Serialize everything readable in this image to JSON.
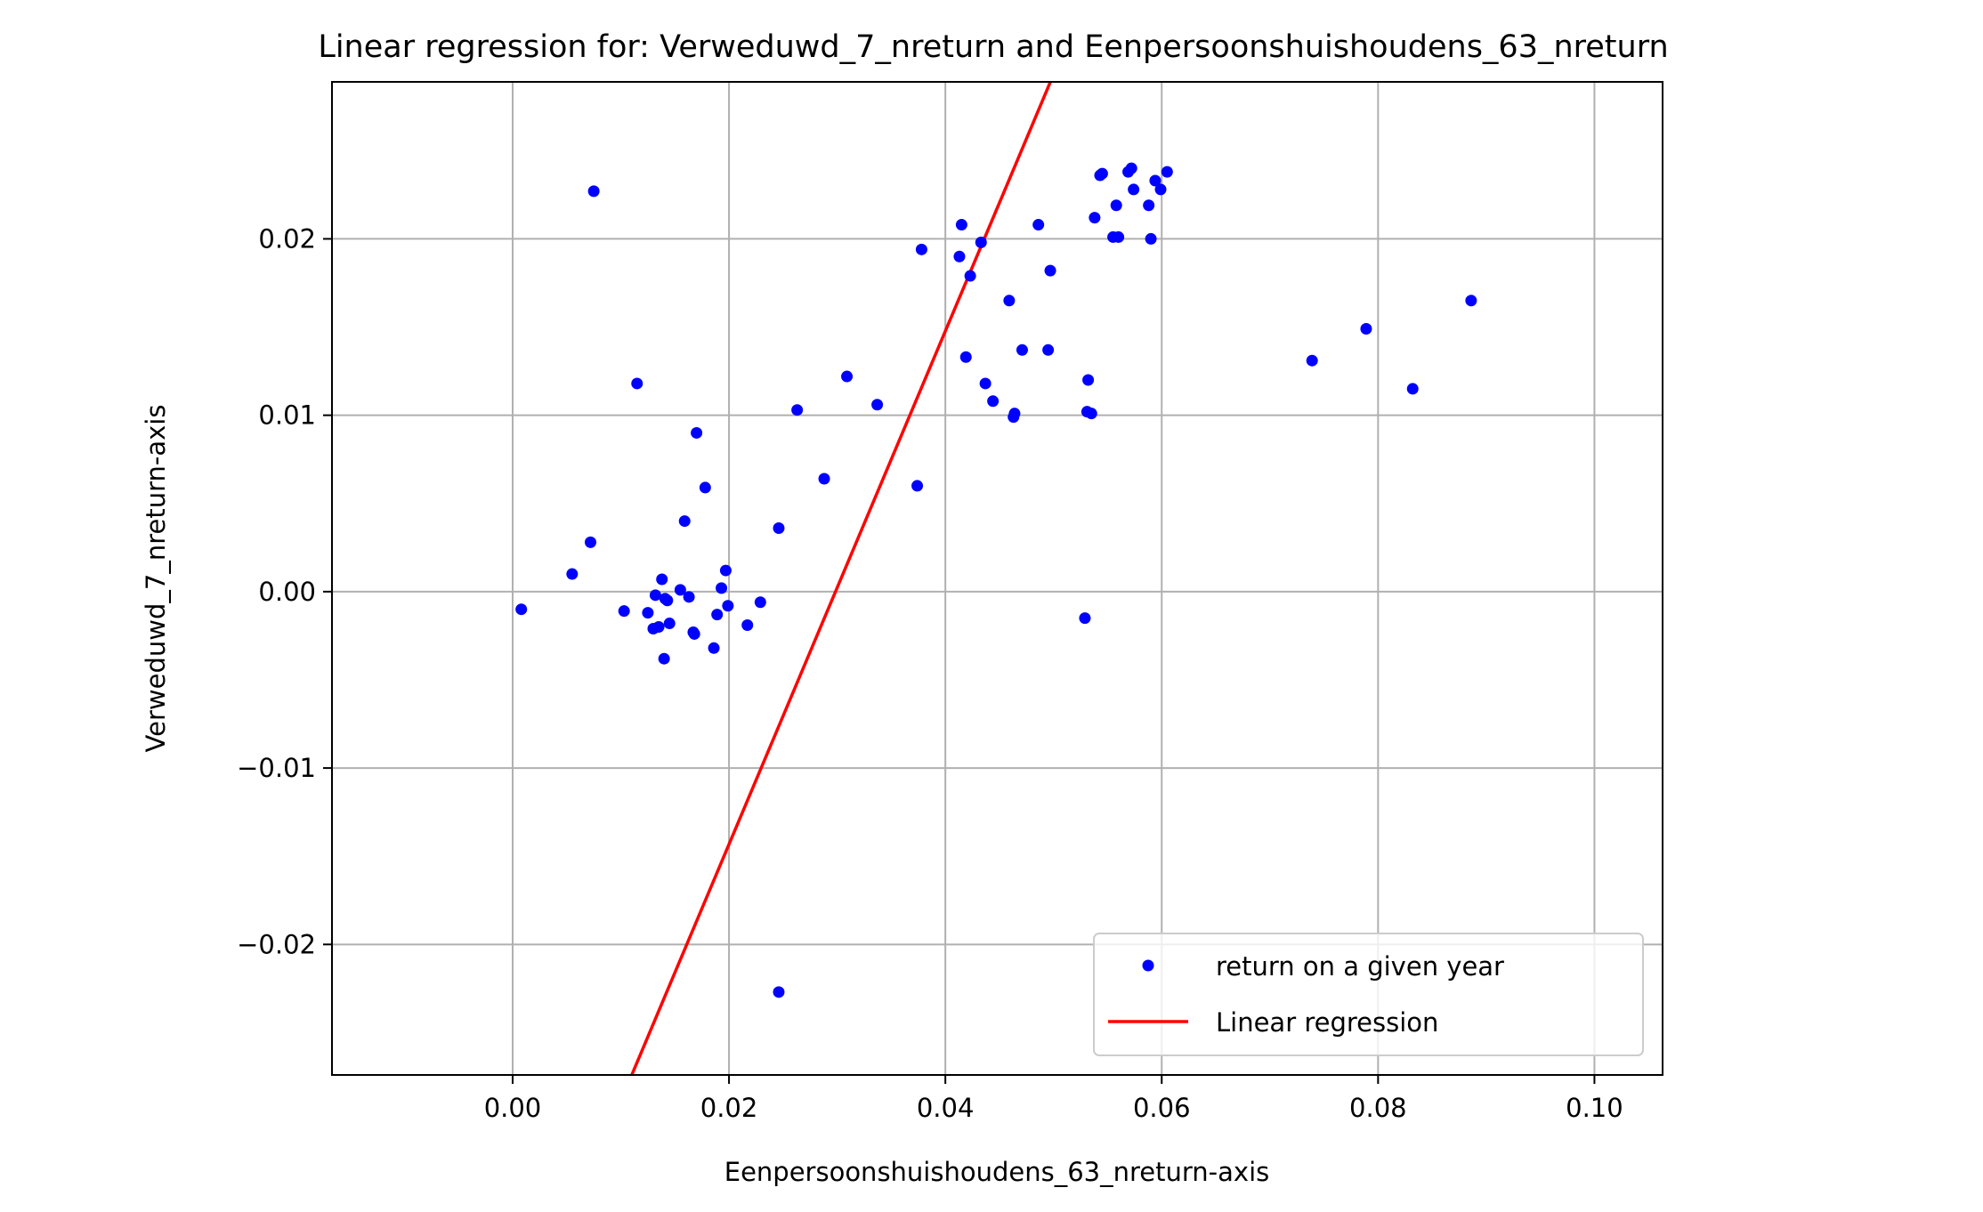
{
  "chart_data": {
    "type": "scatter",
    "title": "Linear regression for: Verweduwd_7_nreturn and Eenpersoonshuishoudens_63_nreturn",
    "xlabel": "Eenpersoonshuishoudens_63_nreturn-axis",
    "ylabel": "Verweduwd_7_nreturn-axis",
    "xlim": [
      -0.0167,
      0.1063
    ],
    "ylim": [
      -0.0274,
      0.0289
    ],
    "x_ticks": [
      0.0,
      0.02,
      0.04,
      0.06,
      0.08,
      0.1
    ],
    "x_tick_labels": [
      "0.00",
      "0.02",
      "0.04",
      "0.06",
      "0.08",
      "0.10"
    ],
    "y_ticks": [
      -0.02,
      -0.01,
      0.0,
      0.01,
      0.02
    ],
    "y_tick_labels": [
      "−0.02",
      "−0.01",
      "0.00",
      "0.01",
      "0.02"
    ],
    "grid": true,
    "legend_position": "bottom-right",
    "colors": {
      "points": "#0000ff",
      "line": "#ff0000",
      "grid": "#b0b0b0"
    },
    "series": [
      {
        "name": "return on a given year",
        "type": "scatter",
        "points": [
          [
            0.0008,
            -0.001
          ],
          [
            0.0055,
            0.001
          ],
          [
            0.0072,
            0.0028
          ],
          [
            0.0075,
            0.0227
          ],
          [
            0.0103,
            -0.0011
          ],
          [
            0.0115,
            0.0118
          ],
          [
            0.0125,
            -0.0012
          ],
          [
            0.013,
            -0.0021
          ],
          [
            0.0132,
            -0.0002
          ],
          [
            0.0135,
            -0.002
          ],
          [
            0.0138,
            0.0007
          ],
          [
            0.014,
            -0.0038
          ],
          [
            0.0141,
            -0.0004
          ],
          [
            0.0143,
            -0.0005
          ],
          [
            0.0145,
            -0.0018
          ],
          [
            0.0155,
            0.0001
          ],
          [
            0.0159,
            0.004
          ],
          [
            0.0163,
            -0.0003
          ],
          [
            0.0167,
            -0.0023
          ],
          [
            0.0168,
            -0.0024
          ],
          [
            0.017,
            0.009
          ],
          [
            0.0178,
            0.0059
          ],
          [
            0.0186,
            -0.0032
          ],
          [
            0.0189,
            -0.0013
          ],
          [
            0.0193,
            0.0002
          ],
          [
            0.0197,
            0.0012
          ],
          [
            0.0199,
            -0.0008
          ],
          [
            0.0217,
            -0.0019
          ],
          [
            0.0229,
            -0.0006
          ],
          [
            0.0246,
            0.0036
          ],
          [
            0.0246,
            -0.0227
          ],
          [
            0.0263,
            0.0103
          ],
          [
            0.0288,
            0.0064
          ],
          [
            0.0309,
            0.0122
          ],
          [
            0.0337,
            0.0106
          ],
          [
            0.0374,
            0.006
          ],
          [
            0.0378,
            0.0194
          ],
          [
            0.0413,
            0.019
          ],
          [
            0.0415,
            0.0208
          ],
          [
            0.0419,
            0.0133
          ],
          [
            0.0423,
            0.0179
          ],
          [
            0.0433,
            0.0198
          ],
          [
            0.0437,
            0.0118
          ],
          [
            0.0444,
            0.0108
          ],
          [
            0.0459,
            0.0165
          ],
          [
            0.0463,
            0.0099
          ],
          [
            0.0464,
            0.0101
          ],
          [
            0.0471,
            0.0137
          ],
          [
            0.0486,
            0.0208
          ],
          [
            0.0495,
            0.0137
          ],
          [
            0.0497,
            0.0182
          ],
          [
            0.0529,
            -0.0015
          ],
          [
            0.0531,
            0.0102
          ],
          [
            0.0532,
            0.012
          ],
          [
            0.0535,
            0.0101
          ],
          [
            0.0538,
            0.0212
          ],
          [
            0.0543,
            0.0236
          ],
          [
            0.0545,
            0.0237
          ],
          [
            0.0555,
            0.0201
          ],
          [
            0.0558,
            0.0219
          ],
          [
            0.056,
            0.0201
          ],
          [
            0.0569,
            0.0238
          ],
          [
            0.0572,
            0.024
          ],
          [
            0.0574,
            0.0228
          ],
          [
            0.0588,
            0.0219
          ],
          [
            0.059,
            0.02
          ],
          [
            0.0594,
            0.0233
          ],
          [
            0.0599,
            0.0228
          ],
          [
            0.0605,
            0.0238
          ],
          [
            0.0739,
            0.0131
          ],
          [
            0.0789,
            0.0149
          ],
          [
            0.0832,
            0.0115
          ],
          [
            0.0886,
            0.0165
          ]
        ]
      },
      {
        "name": "Linear regression",
        "type": "line",
        "points": [
          [
            0.01101,
            -0.0274
          ],
          [
            0.04971,
            0.0289
          ]
        ]
      }
    ]
  }
}
